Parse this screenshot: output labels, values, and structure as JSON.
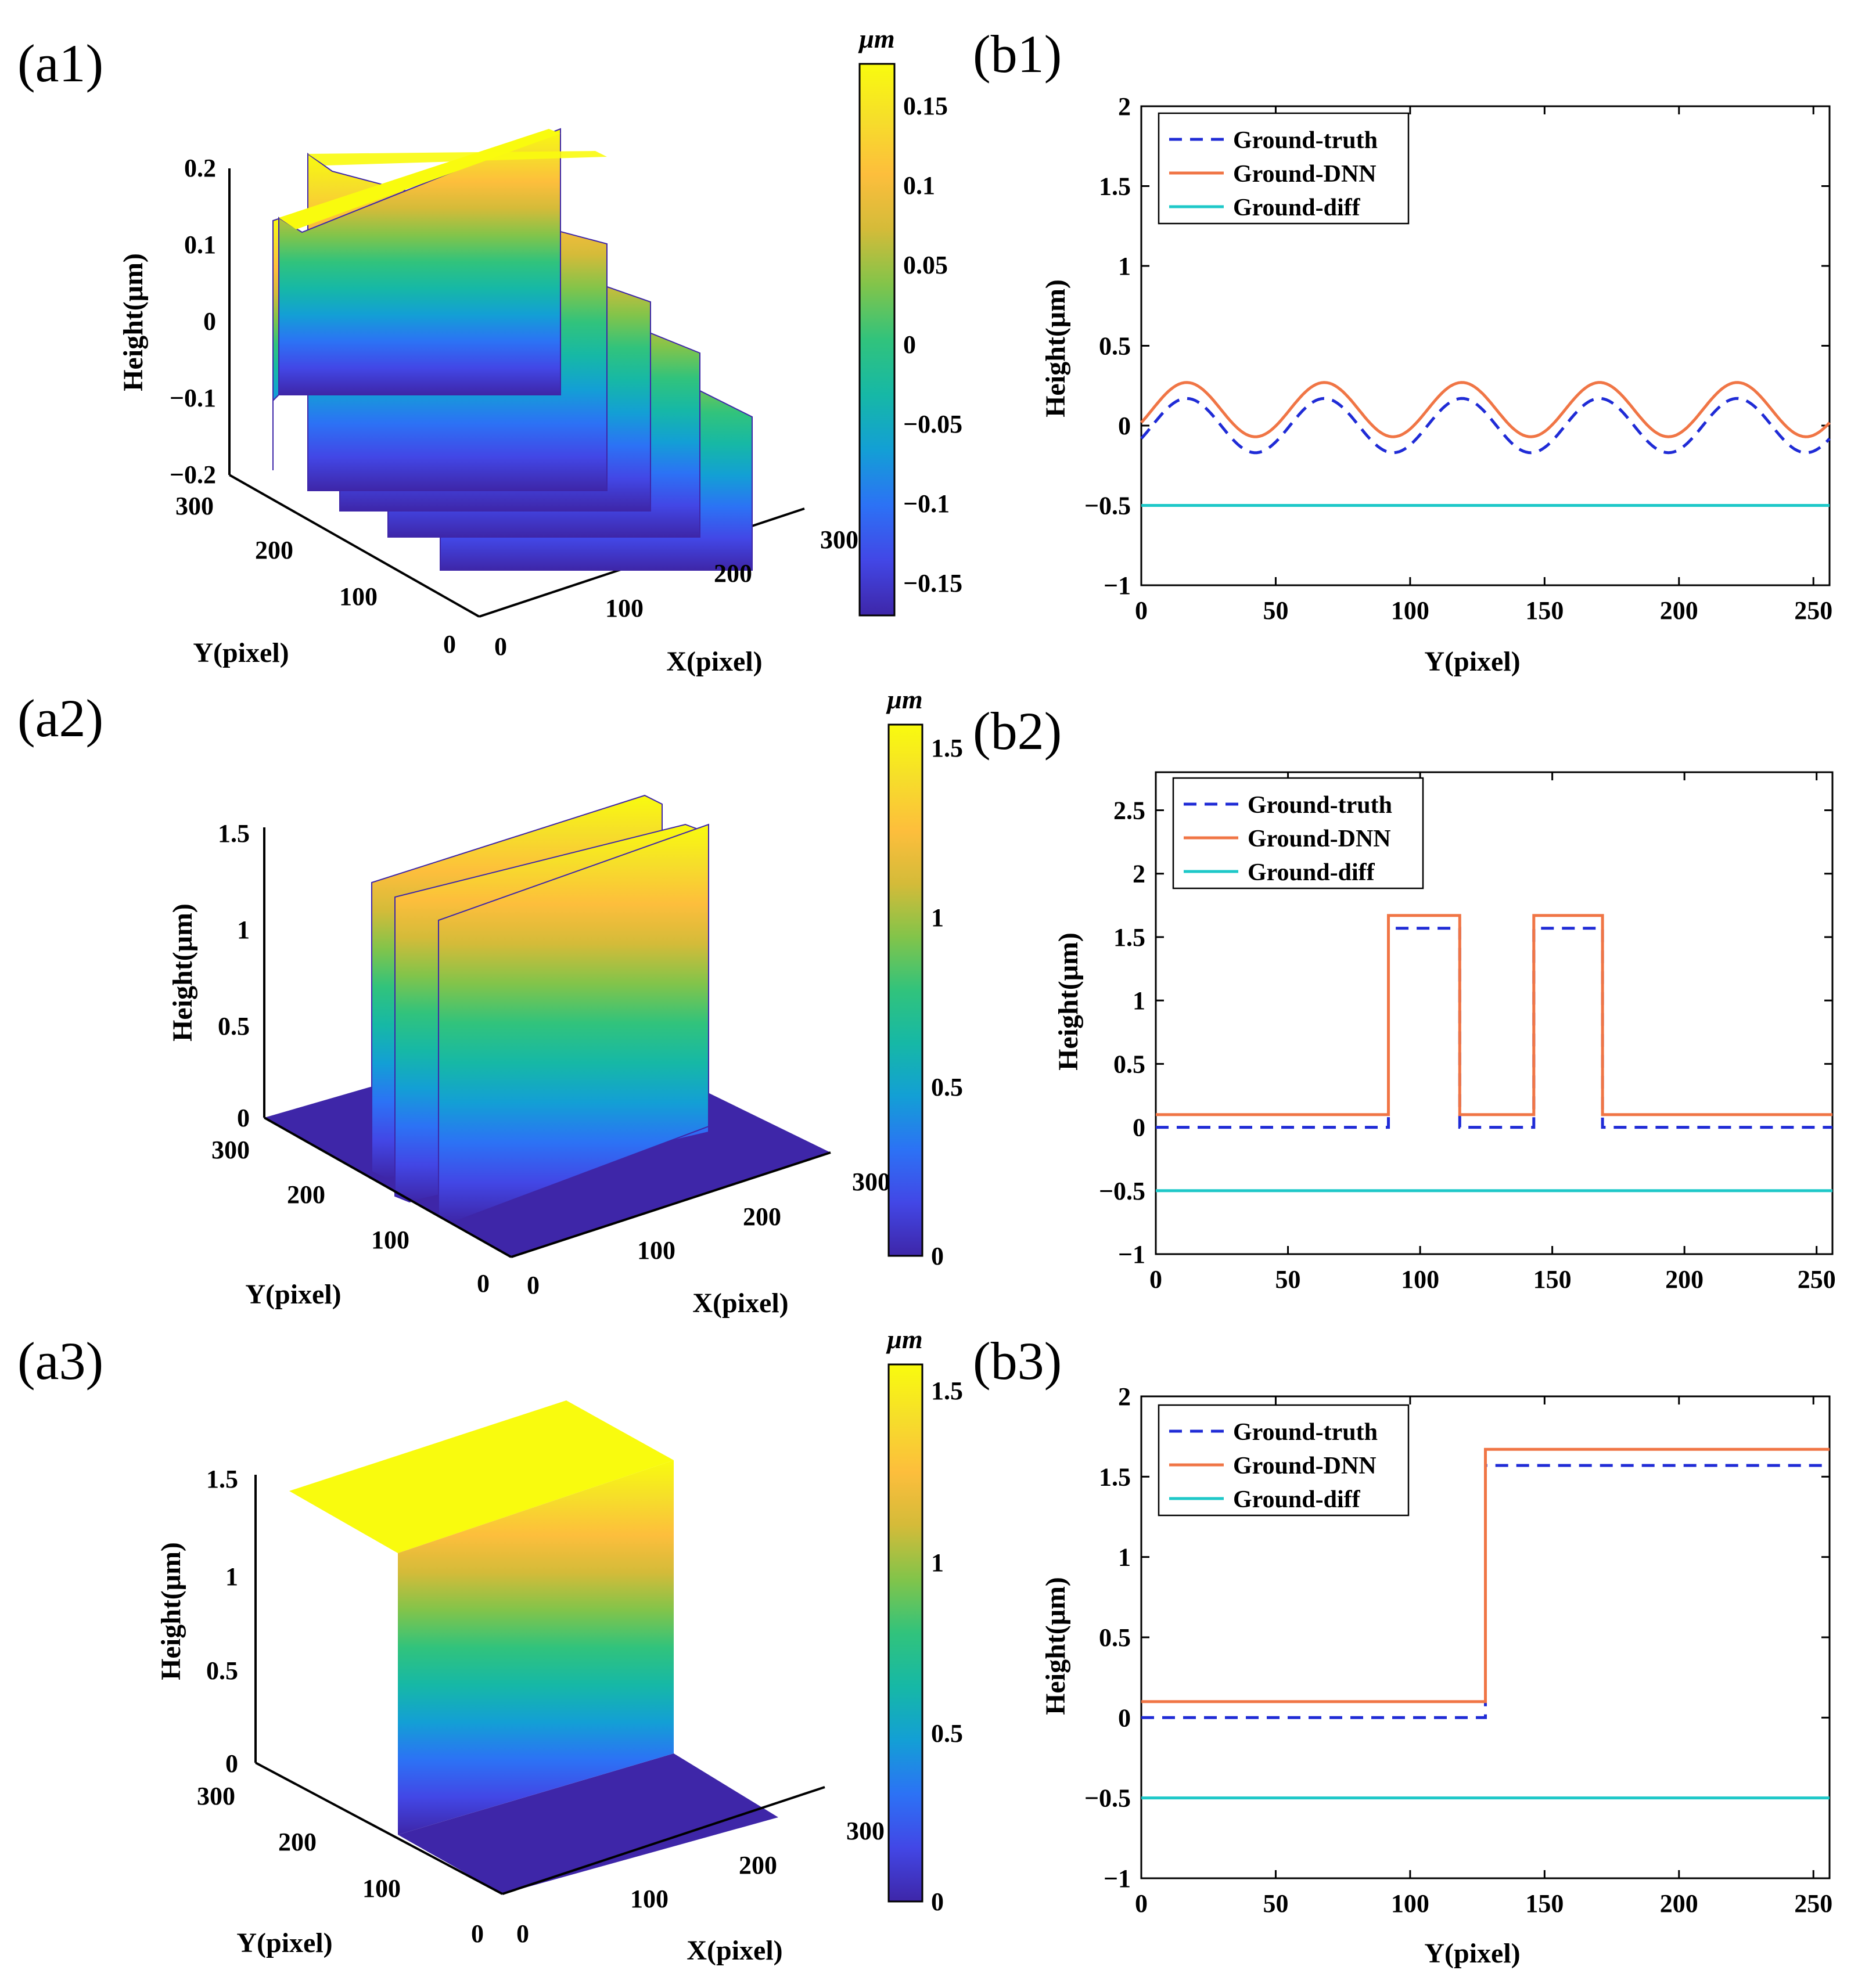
{
  "figure": {
    "colors": {
      "ground_truth": "#1f2bd6",
      "ground_dnn": "#f07545",
      "ground_diff": "#1ec8c8",
      "parula": [
        "#3e26a8",
        "#4247e6",
        "#2c72f5",
        "#139fd5",
        "#16b8a6",
        "#31c37c",
        "#82c44a",
        "#d4bb39",
        "#fdbe3c",
        "#f6de2a",
        "#f9fb0e"
      ]
    }
  },
  "chart_data": [
    {
      "id": "a1",
      "type": "surface3d",
      "panel_label": "(a1)",
      "zlabel": "Height(μm)",
      "xlabel": "X(pixel)",
      "ylabel": "Y(pixel)",
      "zticks": [
        "0.2",
        "0.1",
        "0",
        "−0.1",
        "−0.2"
      ],
      "yticks": [
        "300",
        "200",
        "100",
        "0"
      ],
      "xticks": [
        "0",
        "100",
        "200",
        "300"
      ],
      "surface": "sinusoidal ridges, 5 crests along Y, constant along X, amplitude 0.17",
      "colorbar": {
        "unit": "μm",
        "range": [
          -0.17,
          0.17
        ],
        "ticks": [
          "0.15",
          "0.1",
          "0.05",
          "0",
          "−0.05",
          "−0.1",
          "−0.15"
        ]
      }
    },
    {
      "id": "a2",
      "type": "surface3d",
      "panel_label": "(a2)",
      "zlabel": "Height(μm)",
      "xlabel": "X(pixel)",
      "ylabel": "Y(pixel)",
      "zticks": [
        "1.5",
        "1",
        "0.5",
        "0"
      ],
      "yticks": [
        "300",
        "200",
        "100",
        "0"
      ],
      "xticks": [
        "0",
        "100",
        "200",
        "300"
      ],
      "surface": "two rectangular ridges of height 1.57",
      "colorbar": {
        "unit": "μm",
        "range": [
          0,
          1.57
        ],
        "ticks": [
          "1.5",
          "1",
          "0.5",
          "0"
        ]
      }
    },
    {
      "id": "a3",
      "type": "surface3d",
      "panel_label": "(a3)",
      "zlabel": "Height(μm)",
      "xlabel": "X(pixel)",
      "ylabel": "Y(pixel)",
      "zticks": [
        "1.5",
        "1",
        "0.5",
        "0"
      ],
      "yticks": [
        "300",
        "200",
        "100",
        "0"
      ],
      "xticks": [
        "0",
        "100",
        "200",
        "300"
      ],
      "surface": "single step of height 1.57",
      "colorbar": {
        "unit": "μm",
        "range": [
          0,
          1.57
        ],
        "ticks": [
          "1.5",
          "1",
          "0.5",
          "0"
        ]
      }
    },
    {
      "id": "b1",
      "type": "line",
      "panel_label": "(b1)",
      "xlabel": "Y(pixel)",
      "ylabel": "Height(μm)",
      "xlim": [
        0,
        256
      ],
      "ylim": [
        -1,
        2
      ],
      "xticks": [
        0,
        50,
        100,
        150,
        200,
        250
      ],
      "yticks": [
        -1,
        -0.5,
        0,
        0.5,
        1,
        1.5,
        2
      ],
      "ytick_labels": [
        "−1",
        "−0.5",
        "0",
        "0.5",
        "1",
        "1.5",
        "2"
      ],
      "legend": [
        "Ground-truth",
        "Ground-DNN",
        "Ground-diff"
      ],
      "series": [
        {
          "name": "Ground-truth",
          "style": "dashed",
          "kind": "sine",
          "offset": 0,
          "amplitude": 0.17,
          "period": 51.2,
          "phase_start": -0.5
        },
        {
          "name": "Ground-DNN",
          "style": "solid",
          "kind": "sine",
          "offset": 0.1,
          "amplitude": 0.17,
          "period": 51.2,
          "phase_start": -0.5
        },
        {
          "name": "Ground-diff",
          "style": "solid",
          "kind": "constant",
          "value": -0.5
        }
      ]
    },
    {
      "id": "b2",
      "type": "line",
      "panel_label": "(b2)",
      "xlabel": "",
      "ylabel": "Height(μm)",
      "xlim": [
        0,
        256
      ],
      "ylim": [
        -1,
        2.8
      ],
      "xticks": [
        0,
        50,
        100,
        150,
        200,
        250
      ],
      "yticks": [
        -1,
        -0.5,
        0,
        0.5,
        1,
        1.5,
        2,
        2.5
      ],
      "ytick_labels": [
        "−1",
        "−0.5",
        "0",
        "0.5",
        "1",
        "1.5",
        "2",
        "2.5"
      ],
      "legend": [
        "Ground-truth",
        "Ground-DNN",
        "Ground-diff"
      ],
      "series": [
        {
          "name": "Ground-truth",
          "style": "dashed",
          "kind": "steps",
          "x": [
            0,
            88,
            88,
            115,
            115,
            143,
            143,
            169,
            169,
            256
          ],
          "y": [
            0,
            0,
            1.57,
            1.57,
            0,
            0,
            1.57,
            1.57,
            0,
            0
          ]
        },
        {
          "name": "Ground-DNN",
          "style": "solid",
          "kind": "steps",
          "x": [
            0,
            88,
            88,
            115,
            115,
            143,
            143,
            169,
            169,
            256
          ],
          "y": [
            0.1,
            0.1,
            1.67,
            1.67,
            0.1,
            0.1,
            1.67,
            1.67,
            0.1,
            0.1
          ]
        },
        {
          "name": "Ground-diff",
          "style": "solid",
          "kind": "constant",
          "value": -0.5
        }
      ]
    },
    {
      "id": "b3",
      "type": "line",
      "panel_label": "(b3)",
      "xlabel": "Y(pixel)",
      "ylabel": "Height(μm)",
      "xlim": [
        0,
        256
      ],
      "ylim": [
        -1,
        2
      ],
      "xticks": [
        0,
        50,
        100,
        150,
        200,
        250
      ],
      "yticks": [
        -1,
        -0.5,
        0,
        0.5,
        1,
        1.5,
        2
      ],
      "ytick_labels": [
        "−1",
        "−0.5",
        "0",
        "0.5",
        "1",
        "1.5",
        "2"
      ],
      "legend": [
        "Ground-truth",
        "Ground-DNN",
        "Ground-diff"
      ],
      "series": [
        {
          "name": "Ground-truth",
          "style": "dashed",
          "kind": "steps",
          "x": [
            0,
            128,
            128,
            256
          ],
          "y": [
            0,
            0,
            1.57,
            1.57
          ]
        },
        {
          "name": "Ground-DNN",
          "style": "solid",
          "kind": "steps",
          "x": [
            0,
            128,
            128,
            256
          ],
          "y": [
            0.1,
            0.1,
            1.67,
            1.67
          ]
        },
        {
          "name": "Ground-diff",
          "style": "solid",
          "kind": "constant",
          "value": -0.5
        }
      ]
    }
  ]
}
